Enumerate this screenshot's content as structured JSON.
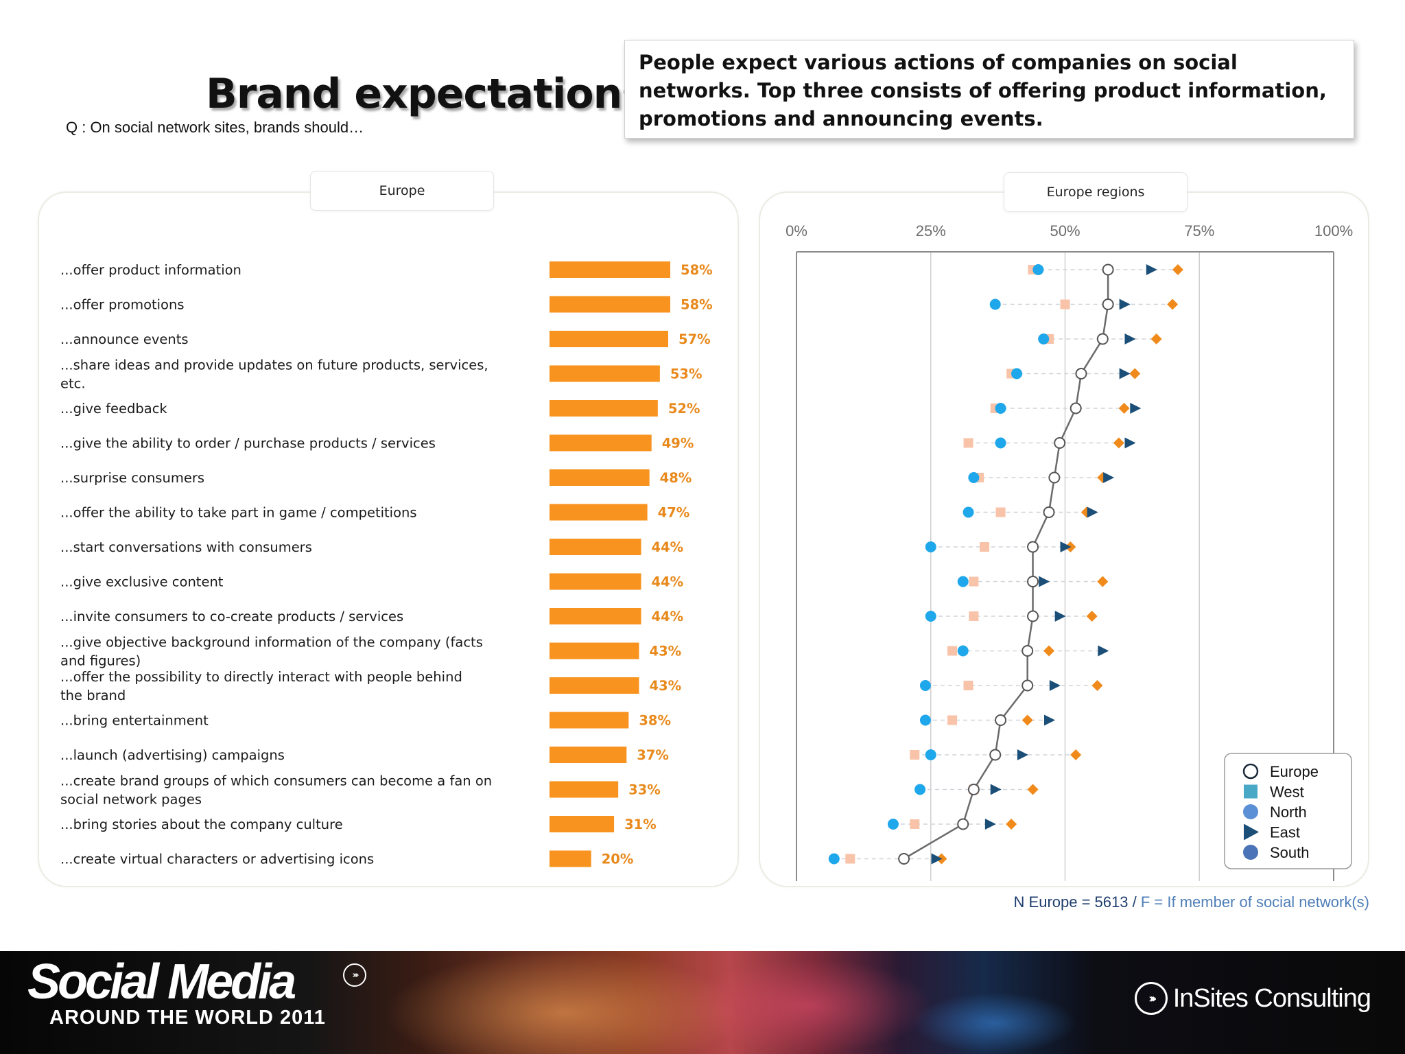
{
  "title": "Brand expectations",
  "question": "Q : On social network sites, brands should…",
  "callout": "People expect various actions of companies on social networks. Top three consists of offering product information, promotions and announcing events.",
  "left_panel": {
    "label": "Europe"
  },
  "right_panel": {
    "label": "Europe regions"
  },
  "note": {
    "part1": "N Europe = 5613 /",
    "part2": "F = If member of social network(s)"
  },
  "footer": {
    "brand_title": "Social Media",
    "brand_subtitle": "AROUND THE WORLD 2011",
    "company": "InSites Consulting"
  },
  "colors": {
    "bar": "#f7931e",
    "bar_label": "#e8891c",
    "europe_line": "#6b6b6b",
    "west": "#f8c3a8",
    "north": "#1ea7ea",
    "east": "#1b4f78",
    "south": "#f08a1a",
    "legend_west": "#4aa8c7",
    "legend_north": "#5b8fd6",
    "legend_south": "#4a73b8"
  },
  "chart_data": [
    {
      "type": "bar",
      "orientation": "horizontal",
      "categories": [
        "...offer product information",
        "...offer promotions",
        "...announce events",
        "...share ideas and provide updates on future products, services, etc.",
        "...give feedback",
        "...give the ability to order / purchase products / services",
        "...surprise consumers",
        "...offer the ability to take part in game / competitions",
        "...start conversations with consumers",
        "...give exclusive content",
        "...invite consumers to co-create products / services",
        "...give objective background information of the company (facts and figures)",
        "...offer the possibility to directly interact with people behind the brand",
        "...bring entertainment",
        "...launch (advertising) campaigns",
        "...create brand groups of which consumers can become a fan on social network pages",
        "...bring stories about the company culture",
        "...create virtual characters or advertising icons"
      ],
      "values": [
        58,
        58,
        57,
        53,
        52,
        49,
        48,
        47,
        44,
        44,
        44,
        43,
        43,
        38,
        37,
        33,
        31,
        20
      ],
      "labels": [
        "58%",
        "58%",
        "57%",
        "53%",
        "52%",
        "49%",
        "48%",
        "47%",
        "44%",
        "44%",
        "44%",
        "43%",
        "43%",
        "38%",
        "37%",
        "33%",
        "31%",
        "20%"
      ],
      "xlim": [
        0,
        100
      ]
    },
    {
      "type": "scatter",
      "x_ticks": [
        "0%",
        "25%",
        "50%",
        "75%",
        "100%"
      ],
      "xlim": [
        0,
        100
      ],
      "series": [
        {
          "name": "Europe",
          "values": [
            58,
            58,
            57,
            53,
            52,
            49,
            48,
            47,
            44,
            44,
            44,
            43,
            43,
            38,
            37,
            33,
            31,
            20
          ]
        },
        {
          "name": "West",
          "values": [
            44,
            50,
            47,
            40,
            37,
            32,
            34,
            38,
            35,
            33,
            33,
            29,
            32,
            29,
            22,
            33,
            22,
            10
          ]
        },
        {
          "name": "North",
          "values": [
            45,
            37,
            46,
            41,
            38,
            38,
            33,
            32,
            25,
            31,
            25,
            31,
            24,
            24,
            25,
            23,
            18,
            7
          ]
        },
        {
          "name": "East",
          "values": [
            66,
            61,
            62,
            61,
            63,
            62,
            58,
            55,
            50,
            46,
            49,
            57,
            48,
            47,
            42,
            37,
            36,
            26
          ]
        },
        {
          "name": "South",
          "values": [
            71,
            70,
            67,
            63,
            61,
            60,
            57,
            54,
            51,
            57,
            55,
            47,
            56,
            43,
            52,
            44,
            40,
            27
          ]
        }
      ],
      "legend_position": "bottom-right"
    }
  ]
}
